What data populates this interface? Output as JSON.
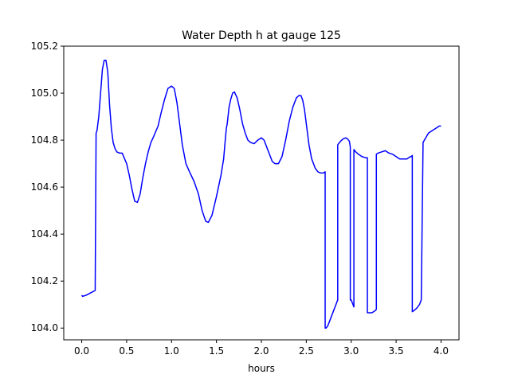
{
  "chart_data": {
    "type": "line",
    "title": "Water Depth h at gauge 125",
    "xlabel": "hours",
    "ylabel": "",
    "xlim": [
      -0.2,
      4.2
    ],
    "ylim": [
      103.95,
      105.2
    ],
    "xticks": [
      0.0,
      0.5,
      1.0,
      1.5,
      2.0,
      2.5,
      3.0,
      3.5,
      4.0
    ],
    "xtick_labels": [
      "0.0",
      "0.5",
      "1.0",
      "1.5",
      "2.0",
      "2.5",
      "3.0",
      "3.5",
      "4.0"
    ],
    "yticks": [
      104.0,
      104.2,
      104.4,
      104.6,
      104.8,
      105.0,
      105.2
    ],
    "ytick_labels": [
      "104.0",
      "104.2",
      "104.4",
      "104.6",
      "104.8",
      "105.0",
      "105.2"
    ],
    "grid": false,
    "series": [
      {
        "color": "#0000ff",
        "x": [
          0.0,
          0.01,
          0.05,
          0.1,
          0.15,
          0.16,
          0.17,
          0.19,
          0.21,
          0.23,
          0.25,
          0.27,
          0.29,
          0.31,
          0.33,
          0.35,
          0.37,
          0.39,
          0.42,
          0.45,
          0.5,
          0.53,
          0.56,
          0.59,
          0.62,
          0.65,
          0.68,
          0.71,
          0.74,
          0.77,
          0.8,
          0.85,
          0.88,
          0.92,
          0.96,
          1.0,
          1.03,
          1.06,
          1.09,
          1.12,
          1.16,
          1.2,
          1.25,
          1.3,
          1.34,
          1.38,
          1.41,
          1.45,
          1.5,
          1.55,
          1.58,
          1.6,
          1.61,
          1.62,
          1.64,
          1.66,
          1.68,
          1.7,
          1.73,
          1.76,
          1.79,
          1.82,
          1.85,
          1.88,
          1.92,
          1.96,
          2.0,
          2.03,
          2.06,
          2.09,
          2.12,
          2.15,
          2.19,
          2.23,
          2.27,
          2.31,
          2.35,
          2.39,
          2.42,
          2.44,
          2.46,
          2.48,
          2.5,
          2.53,
          2.56,
          2.6,
          2.63,
          2.66,
          2.69,
          2.71,
          2.71,
          2.72,
          2.74,
          2.77,
          2.8,
          2.83,
          2.85,
          2.85,
          2.88,
          2.91,
          2.94,
          2.96,
          2.98,
          2.99,
          2.99,
          3.0,
          3.01,
          3.02,
          3.03,
          3.03,
          3.05,
          3.08,
          3.12,
          3.16,
          3.18,
          3.18,
          3.2,
          3.23,
          3.25,
          3.27,
          3.28,
          3.28,
          3.3,
          3.34,
          3.38,
          3.42,
          3.46,
          3.5,
          3.54,
          3.58,
          3.62,
          3.64,
          3.66,
          3.67,
          3.68,
          3.68,
          3.7,
          3.73,
          3.76,
          3.78,
          3.78,
          3.8,
          3.83,
          3.86,
          3.9,
          3.94,
          3.98,
          4.0
        ],
        "y": [
          104.14,
          104.135,
          104.14,
          104.15,
          104.16,
          104.83,
          104.84,
          104.9,
          105.0,
          105.1,
          105.14,
          105.14,
          105.09,
          104.95,
          104.85,
          104.79,
          104.765,
          104.75,
          104.745,
          104.745,
          104.7,
          104.65,
          104.59,
          104.54,
          104.535,
          104.57,
          104.64,
          104.7,
          104.75,
          104.79,
          104.815,
          104.86,
          104.91,
          104.97,
          105.02,
          105.03,
          105.02,
          104.96,
          104.87,
          104.78,
          104.7,
          104.665,
          104.625,
          104.57,
          104.5,
          104.455,
          104.45,
          104.48,
          104.56,
          104.65,
          104.72,
          104.81,
          104.85,
          104.87,
          104.94,
          104.975,
          105.0,
          105.005,
          104.98,
          104.93,
          104.87,
          104.83,
          104.8,
          104.79,
          104.785,
          104.8,
          104.81,
          104.8,
          104.77,
          104.74,
          104.71,
          104.7,
          104.7,
          104.73,
          104.8,
          104.88,
          104.94,
          104.98,
          104.99,
          104.99,
          104.97,
          104.93,
          104.87,
          104.78,
          104.72,
          104.68,
          104.665,
          104.66,
          104.66,
          104.665,
          104.0,
          104.0,
          104.01,
          104.04,
          104.07,
          104.1,
          104.12,
          104.78,
          104.795,
          104.805,
          104.81,
          104.805,
          104.795,
          104.77,
          104.12,
          104.12,
          104.11,
          104.1,
          104.09,
          104.76,
          104.75,
          104.74,
          104.73,
          104.725,
          104.725,
          104.065,
          104.065,
          104.065,
          104.07,
          104.075,
          104.08,
          104.74,
          104.745,
          104.75,
          104.755,
          104.745,
          104.74,
          104.73,
          104.72,
          104.72,
          104.72,
          104.725,
          104.73,
          104.73,
          104.735,
          104.07,
          104.075,
          104.085,
          104.1,
          104.12,
          104.12,
          104.79,
          104.81,
          104.83,
          104.84,
          104.85,
          104.86,
          104.86
        ]
      }
    ]
  }
}
